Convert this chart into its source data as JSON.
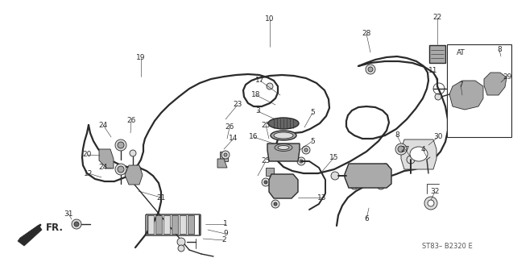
{
  "bg_color": "#ffffff",
  "line_color": "#2a2a2a",
  "diagram_code": "ST83– B2320 E",
  "figwidth": 6.37,
  "figheight": 3.2,
  "dpi": 100,
  "fs_label": 6.5,
  "fs_code": 6.0,
  "lw_pipe": 1.6,
  "lw_part": 1.0,
  "lw_thin": 0.6,
  "part_gray": "#aaaaaa",
  "part_dark": "#666666",
  "part_light": "#dddddd"
}
